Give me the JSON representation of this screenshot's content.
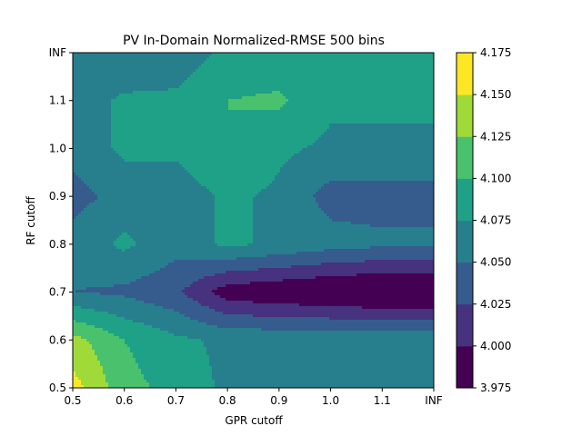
{
  "chart_data": {
    "type": "contour",
    "title": "PV In-Domain Normalized-RMSE 500 bins",
    "xlabel": "GPR cutoff",
    "ylabel": "RF cutoff",
    "x_tick_labels": [
      "0.5",
      "0.6",
      "0.7",
      "0.8",
      "0.9",
      "1.0",
      "1.1",
      "INF"
    ],
    "y_tick_labels": [
      "0.5",
      "0.6",
      "0.7",
      "0.8",
      "0.9",
      "1.0",
      "1.1",
      "INF"
    ],
    "z_grid": [
      [
        4.16,
        4.11,
        4.09,
        4.07,
        4.07,
        4.07,
        4.07,
        4.07
      ],
      [
        4.135,
        4.1,
        4.08,
        4.07,
        4.07,
        4.07,
        4.07,
        4.07
      ],
      [
        4.05,
        4.045,
        4.03,
        3.985,
        3.978,
        3.97,
        3.965,
        3.965
      ],
      [
        4.06,
        4.08,
        4.06,
        4.08,
        4.07,
        4.06,
        4.055,
        4.055
      ],
      [
        4.04,
        4.06,
        4.06,
        4.08,
        4.07,
        4.04,
        4.04,
        4.04
      ],
      [
        4.06,
        4.08,
        4.08,
        4.1,
        4.08,
        4.07,
        4.07,
        4.07
      ],
      [
        4.06,
        4.08,
        4.08,
        4.1,
        4.105,
        4.08,
        4.08,
        4.08
      ],
      [
        4.05,
        4.05,
        4.06,
        4.08,
        4.08,
        4.08,
        4.08,
        4.08
      ]
    ],
    "levels": [
      3.975,
      4.0,
      4.025,
      4.05,
      4.075,
      4.1,
      4.125,
      4.15,
      4.175
    ],
    "level_colors": [
      "#440154",
      "#46327e",
      "#365c8d",
      "#277f8e",
      "#1fa187",
      "#4ac16d",
      "#a0da39",
      "#fde725"
    ],
    "colorbar_tick_labels": [
      "3.975",
      "4.000",
      "4.025",
      "4.050",
      "4.075",
      "4.100",
      "4.125",
      "4.150",
      "4.175"
    ]
  }
}
